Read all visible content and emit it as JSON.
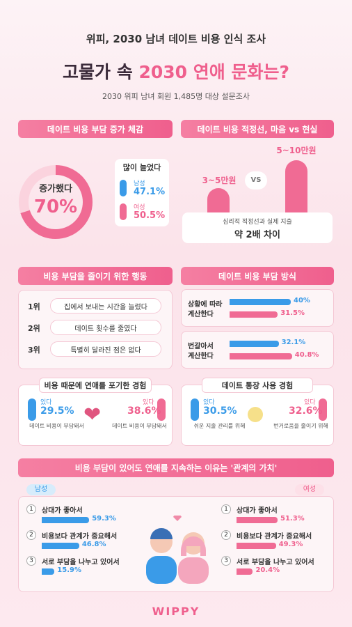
{
  "header": {
    "eyebrow": "위피, 2030 남녀 데이트 비용 인식 조사",
    "title_plain": "고물가 속 ",
    "title_accent": "2030 연애 문화는?",
    "subtitle": "2030 위피 남녀 회원 1,485명 대상 설문조사"
  },
  "burden": {
    "heading": "데이트 비용 부담 증가 체감",
    "donut_label": "증가했다",
    "donut": {
      "value": 70,
      "label": "70%"
    },
    "box_title": "많이 늘었다",
    "male": {
      "name": "남성",
      "value": 47.1,
      "label": "47.1%"
    },
    "female": {
      "name": "여성",
      "value": 50.5,
      "label": "50.5%"
    }
  },
  "budget": {
    "heading": "데이트 비용 적정선, 마음 vs 현실",
    "ideal": "3~5만원",
    "vs": "VS",
    "actual": "5~10만원",
    "note": "심리적 적정선과 실제 지출",
    "result": "약 2배 차이"
  },
  "actions": {
    "heading": "비용 부담을 줄이기 위한 행동",
    "items": [
      {
        "rank": "1위",
        "text": "집에서 보내는 시간을 늘렸다"
      },
      {
        "rank": "2위",
        "text": "데이트 횟수를 줄였다"
      },
      {
        "rank": "3위",
        "text": "특별히 달라진 점은 없다"
      }
    ]
  },
  "split": {
    "heading": "데이트 비용 부담 방식",
    "groups": [
      {
        "lines": [
          "상황에 따라",
          "계산한다"
        ],
        "male": {
          "value": 40,
          "label": "40%"
        },
        "female": {
          "value": 31.5,
          "label": "31.5%"
        }
      },
      {
        "lines": [
          "번갈아서",
          "계산한다"
        ],
        "male": {
          "value": 32.1,
          "label": "32.1%"
        },
        "female": {
          "value": 40.8,
          "label": "40.8%"
        }
      }
    ]
  },
  "giveup": {
    "heading": "비용 때문에 연애를 포기한 경험",
    "male": {
      "tag": "있다",
      "value": 29.5,
      "label": "29.5%",
      "reason": "데이트 비용이 부담돼서"
    },
    "female": {
      "tag": "있다",
      "value": 38.6,
      "label": "38.6%",
      "reason": "데이트 비용이 부담돼서"
    }
  },
  "account": {
    "heading": "데이트 통장 사용 경험",
    "male": {
      "tag": "있다",
      "value": 30.5,
      "label": "30.5%",
      "reason": "쉬운 지출 관리를 위해"
    },
    "female": {
      "tag": "있다",
      "value": 32.6,
      "label": "32.6%",
      "reason": "번거로움을 줄이기 위해"
    }
  },
  "reasons": {
    "heading": "비용 부담이 있어도 연애를 지속하는 이유는 '관계의 가치'",
    "male_label": "남성",
    "female_label": "여성",
    "male": [
      {
        "rank": "1",
        "text": "상대가 좋아서",
        "value": 59.3,
        "label": "59.3%"
      },
      {
        "rank": "2",
        "text": "비용보다 관계가 중요해서",
        "value": 46.8,
        "label": "46.8%"
      },
      {
        "rank": "3",
        "text": "서로 부담을 나누고 있어서",
        "value": 15.9,
        "label": "15.9%"
      }
    ],
    "female": [
      {
        "rank": "1",
        "text": "상대가 좋아서",
        "value": 51.3,
        "label": "51.3%"
      },
      {
        "rank": "2",
        "text": "비용보다 관계가 중요해서",
        "value": 49.3,
        "label": "49.3%"
      },
      {
        "rank": "3",
        "text": "서로 부담을 나누고 있어서",
        "value": 20.4,
        "label": "20.4%"
      }
    ]
  },
  "footer": "WIPPY"
}
